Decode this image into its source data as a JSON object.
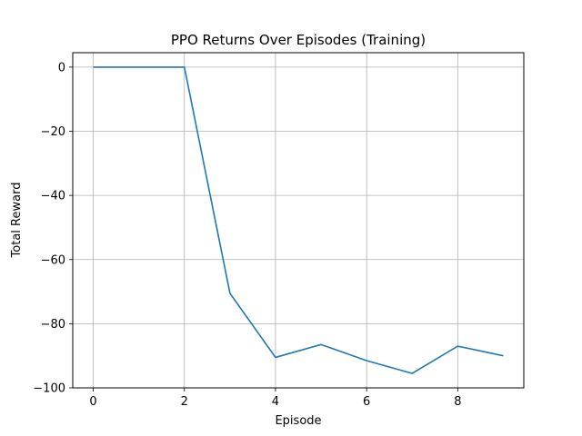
{
  "chart_data": {
    "type": "line",
    "title": "PPO Returns Over Episodes (Training)",
    "xlabel": "Episode",
    "ylabel": "Total Reward",
    "x": [
      0,
      1,
      2,
      3,
      4,
      5,
      6,
      7,
      8,
      9
    ],
    "series": [
      {
        "values": [
          0,
          0,
          0,
          -70.5,
          -90.5,
          -86.5,
          -91.5,
          -95.5,
          -87,
          -90
        ],
        "color": "#1f77b4"
      }
    ],
    "xticks": [
      0,
      2,
      4,
      6,
      8
    ],
    "xtick_labels": [
      "0",
      "2",
      "4",
      "6",
      "8"
    ],
    "yticks": [
      0,
      -20,
      -40,
      -60,
      -80,
      -100
    ],
    "ytick_labels": [
      "0",
      "−20",
      "−40",
      "−60",
      "−80",
      "−100"
    ],
    "xlim": [
      -0.45,
      9.45
    ],
    "ylim": [
      -100,
      4.5
    ],
    "grid": true
  }
}
